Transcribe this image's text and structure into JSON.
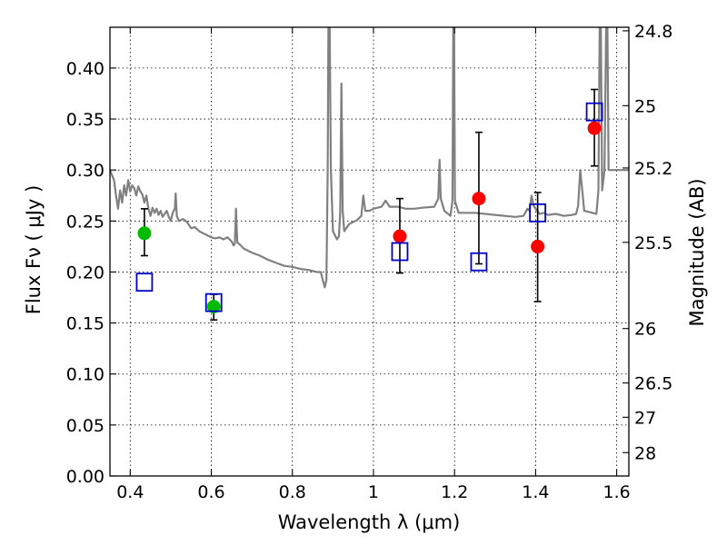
{
  "chart_data": {
    "type": "scatter",
    "xlabel": "Wavelength  λ (μm)",
    "ylabel": "Flux  Fν ( μJy )",
    "ylabel2": "Magnitude (AB)",
    "xlim": [
      0.35,
      1.63
    ],
    "ylim": [
      0.0,
      0.44
    ],
    "grid": true,
    "x_ticks": [
      {
        "value": 0.4,
        "label": "0.4"
      },
      {
        "value": 0.6,
        "label": "0.6"
      },
      {
        "value": 0.8,
        "label": "0.8"
      },
      {
        "value": 1.0,
        "label": "1"
      },
      {
        "value": 1.2,
        "label": "1.2"
      },
      {
        "value": 1.4,
        "label": "1.4"
      },
      {
        "value": 1.6,
        "label": "1.6"
      }
    ],
    "y_ticks": [
      {
        "value": 0.0,
        "label": "0.00"
      },
      {
        "value": 0.05,
        "label": "0.05"
      },
      {
        "value": 0.1,
        "label": "0.10"
      },
      {
        "value": 0.15,
        "label": "0.15"
      },
      {
        "value": 0.2,
        "label": "0.20"
      },
      {
        "value": 0.25,
        "label": "0.25"
      },
      {
        "value": 0.3,
        "label": "0.30"
      },
      {
        "value": 0.35,
        "label": "0.35"
      },
      {
        "value": 0.4,
        "label": "0.40"
      }
    ],
    "y2_ticks": [
      {
        "value": 24.8,
        "label": "24.8"
      },
      {
        "value": 25.0,
        "label": "25"
      },
      {
        "value": 25.2,
        "label": "25.2"
      },
      {
        "value": 25.5,
        "label": "25.5"
      },
      {
        "value": 26.0,
        "label": "26"
      },
      {
        "value": 26.5,
        "label": "26.5"
      },
      {
        "value": 27.0,
        "label": "27"
      },
      {
        "value": 28.0,
        "label": "28"
      }
    ],
    "series": [
      {
        "kind": "spectrum",
        "color": "#808080",
        "points": [
          [
            0.35,
            0.3
          ],
          [
            0.36,
            0.29
          ],
          [
            0.365,
            0.275
          ],
          [
            0.37,
            0.262
          ],
          [
            0.375,
            0.28
          ],
          [
            0.38,
            0.268
          ],
          [
            0.385,
            0.285
          ],
          [
            0.39,
            0.275
          ],
          [
            0.395,
            0.29
          ],
          [
            0.4,
            0.279
          ],
          [
            0.405,
            0.285
          ],
          [
            0.41,
            0.282
          ],
          [
            0.415,
            0.275
          ],
          [
            0.42,
            0.284
          ],
          [
            0.425,
            0.279
          ],
          [
            0.43,
            0.276
          ],
          [
            0.435,
            0.268
          ],
          [
            0.44,
            0.275
          ],
          [
            0.445,
            0.262
          ],
          [
            0.45,
            0.255
          ],
          [
            0.455,
            0.263
          ],
          [
            0.46,
            0.258
          ],
          [
            0.465,
            0.262
          ],
          [
            0.47,
            0.256
          ],
          [
            0.475,
            0.26
          ],
          [
            0.48,
            0.254
          ],
          [
            0.49,
            0.26
          ],
          [
            0.495,
            0.254
          ],
          [
            0.5,
            0.25
          ],
          [
            0.505,
            0.258
          ],
          [
            0.51,
            0.262
          ],
          [
            0.512,
            0.277
          ],
          [
            0.515,
            0.255
          ],
          [
            0.52,
            0.25
          ],
          [
            0.53,
            0.252
          ],
          [
            0.54,
            0.249
          ],
          [
            0.55,
            0.243
          ],
          [
            0.56,
            0.244
          ],
          [
            0.57,
            0.24
          ],
          [
            0.58,
            0.238
          ],
          [
            0.59,
            0.236
          ],
          [
            0.6,
            0.234
          ],
          [
            0.61,
            0.233
          ],
          [
            0.62,
            0.234
          ],
          [
            0.63,
            0.232
          ],
          [
            0.64,
            0.234
          ],
          [
            0.65,
            0.23
          ],
          [
            0.655,
            0.226
          ],
          [
            0.658,
            0.228
          ],
          [
            0.661,
            0.262
          ],
          [
            0.664,
            0.229
          ],
          [
            0.67,
            0.227
          ],
          [
            0.68,
            0.223
          ],
          [
            0.7,
            0.219
          ],
          [
            0.72,
            0.216
          ],
          [
            0.74,
            0.212
          ],
          [
            0.76,
            0.209
          ],
          [
            0.78,
            0.206
          ],
          [
            0.8,
            0.205
          ],
          [
            0.82,
            0.203
          ],
          [
            0.84,
            0.202
          ],
          [
            0.86,
            0.2
          ],
          [
            0.87,
            0.2
          ],
          [
            0.875,
            0.192
          ],
          [
            0.88,
            0.185
          ],
          [
            0.884,
            0.192
          ],
          [
            0.887,
            0.3
          ],
          [
            0.889,
            0.44
          ],
          [
            0.892,
            0.44
          ],
          [
            0.895,
            0.3
          ],
          [
            0.9,
            0.24
          ],
          [
            0.91,
            0.232
          ],
          [
            0.915,
            0.235
          ],
          [
            0.918,
            0.26
          ],
          [
            0.921,
            0.385
          ],
          [
            0.924,
            0.26
          ],
          [
            0.928,
            0.24
          ],
          [
            0.94,
            0.247
          ],
          [
            0.96,
            0.251
          ],
          [
            0.97,
            0.255
          ],
          [
            0.975,
            0.275
          ],
          [
            0.98,
            0.26
          ],
          [
            0.99,
            0.26
          ],
          [
            1.0,
            0.262
          ],
          [
            1.02,
            0.264
          ],
          [
            1.03,
            0.27
          ],
          [
            1.04,
            0.264
          ],
          [
            1.06,
            0.264
          ],
          [
            1.08,
            0.262
          ],
          [
            1.1,
            0.262
          ],
          [
            1.12,
            0.263
          ],
          [
            1.15,
            0.264
          ],
          [
            1.16,
            0.272
          ],
          [
            1.163,
            0.31
          ],
          [
            1.166,
            0.272
          ],
          [
            1.175,
            0.26
          ],
          [
            1.19,
            0.255
          ],
          [
            1.195,
            0.27
          ],
          [
            1.197,
            0.44
          ],
          [
            1.199,
            0.44
          ],
          [
            1.201,
            0.27
          ],
          [
            1.21,
            0.258
          ],
          [
            1.25,
            0.258
          ],
          [
            1.3,
            0.256
          ],
          [
            1.35,
            0.254
          ],
          [
            1.37,
            0.255
          ],
          [
            1.38,
            0.262
          ],
          [
            1.385,
            0.26
          ],
          [
            1.39,
            0.275
          ],
          [
            1.395,
            0.265
          ],
          [
            1.4,
            0.262
          ],
          [
            1.41,
            0.257
          ],
          [
            1.42,
            0.258
          ],
          [
            1.43,
            0.256
          ],
          [
            1.45,
            0.257
          ],
          [
            1.47,
            0.255
          ],
          [
            1.49,
            0.256
          ],
          [
            1.5,
            0.257
          ],
          [
            1.505,
            0.265
          ],
          [
            1.51,
            0.3
          ],
          [
            1.515,
            0.28
          ],
          [
            1.52,
            0.26
          ],
          [
            1.54,
            0.258
          ],
          [
            1.55,
            0.257
          ],
          [
            1.555,
            0.28
          ],
          [
            1.558,
            0.44
          ],
          [
            1.561,
            0.44
          ],
          [
            1.564,
            0.28
          ],
          [
            1.57,
            0.3
          ],
          [
            1.574,
            0.44
          ],
          [
            1.577,
            0.44
          ],
          [
            1.58,
            0.3
          ],
          [
            1.59,
            0.3
          ],
          [
            1.6,
            0.3
          ],
          [
            1.61,
            0.3
          ],
          [
            1.63,
            0.3
          ]
        ]
      },
      {
        "kind": "observed",
        "color": "#00bb00",
        "points": [
          {
            "x": 0.435,
            "y": 0.238,
            "err_low": 0.216,
            "err_high": 0.262
          },
          {
            "x": 0.606,
            "y": 0.166,
            "err_low": 0.153,
            "err_high": 0.178
          }
        ]
      },
      {
        "kind": "observed",
        "color": "#ff0000",
        "points": [
          {
            "x": 1.065,
            "y": 0.235,
            "err_low": 0.199,
            "err_high": 0.272
          },
          {
            "x": 1.26,
            "y": 0.272,
            "err_low": 0.208,
            "err_high": 0.337
          },
          {
            "x": 1.405,
            "y": 0.225,
            "err_low": 0.171,
            "err_high": 0.278
          },
          {
            "x": 1.545,
            "y": 0.341,
            "err_low": 0.304,
            "err_high": 0.379
          }
        ]
      },
      {
        "kind": "model",
        "color": "#0000cc",
        "points": [
          {
            "x": 0.435,
            "y": 0.19
          },
          {
            "x": 0.606,
            "y": 0.17
          },
          {
            "x": 1.065,
            "y": 0.22
          },
          {
            "x": 1.26,
            "y": 0.21
          },
          {
            "x": 1.405,
            "y": 0.258
          },
          {
            "x": 1.545,
            "y": 0.357
          }
        ]
      }
    ]
  }
}
